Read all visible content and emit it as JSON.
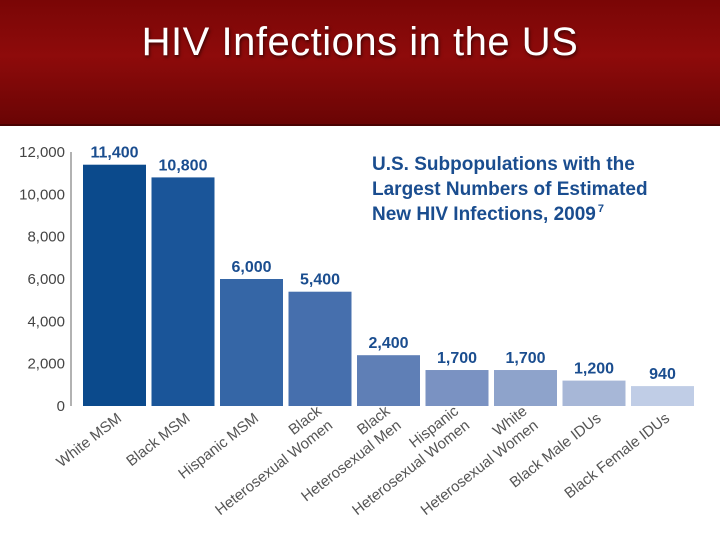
{
  "slide": {
    "title": "HIV Infections in the US"
  },
  "chart_data": {
    "type": "bar",
    "title_lines": [
      "U.S. Subpopulations with the",
      "Largest Numbers of Estimated",
      "New HIV Infections, 2009"
    ],
    "title_superscript": "7",
    "categories": [
      [
        "White MSM"
      ],
      [
        "Black MSM"
      ],
      [
        "Hispanic MSM"
      ],
      [
        "Black",
        "Heterosexual Women"
      ],
      [
        "Black",
        "Heterosexual Men"
      ],
      [
        "Hispanic",
        "Heterosexual Women"
      ],
      [
        "White",
        "Heterosexual Women"
      ],
      [
        "Black Male IDUs"
      ],
      [
        "Black Female IDUs"
      ]
    ],
    "values": [
      11400,
      10800,
      6000,
      5400,
      2400,
      1700,
      1700,
      1200,
      940
    ],
    "value_labels": [
      "11,400",
      "10,800",
      "6,000",
      "5,400",
      "2,400",
      "1,700",
      "1,700",
      "1,200",
      "940"
    ],
    "yticks": [
      "0",
      "2,000",
      "4,000",
      "6,000",
      "8,000",
      "10,000",
      "12,000"
    ],
    "ytick_values": [
      0,
      2000,
      4000,
      6000,
      8000,
      10000,
      12000
    ],
    "ylim": [
      0,
      12000
    ],
    "bar_colors": [
      "#0b4a8c",
      "#1a5599",
      "#3566a6",
      "#466fad",
      "#5f7fb6",
      "#7a92c2",
      "#8ea3cb",
      "#a7b7d7",
      "#c0cde6"
    ],
    "grid": false
  }
}
